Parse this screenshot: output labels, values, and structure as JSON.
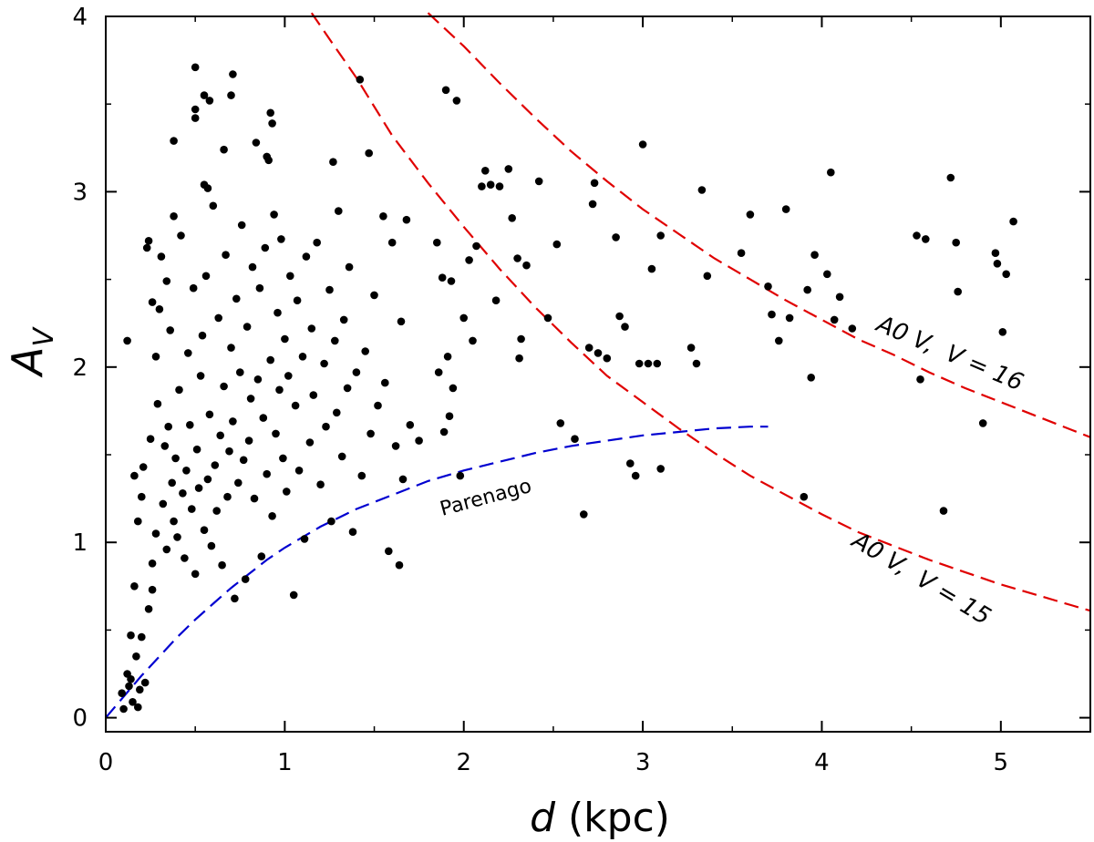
{
  "chart_data": {
    "type": "scatter",
    "title": "",
    "xlabel": {
      "symbol": "d",
      "unit": "(kpc)"
    },
    "ylabel": {
      "symbol": "A",
      "subscript": "V"
    },
    "xlim": [
      0,
      5.5
    ],
    "ylim": [
      -0.08,
      4
    ],
    "x_ticks": [
      0,
      1,
      2,
      3,
      4,
      5
    ],
    "y_ticks": [
      0,
      1,
      2,
      3,
      4
    ],
    "x_tick_labels": [
      "0",
      "1",
      "2",
      "3",
      "4",
      "5"
    ],
    "y_tick_labels": [
      "0",
      "1",
      "2",
      "3",
      "4"
    ],
    "grid": false,
    "colors": {
      "points": "#000000",
      "red_curve": "#e00000",
      "blue_curve": "#0000d0",
      "axes": "#000000"
    },
    "curves": [
      {
        "name": "A0 V, V = 15",
        "label": "A0 V,  V = 15",
        "color": "#e00000",
        "style": "dashed",
        "x_range": [
          1.15,
          5.5
        ]
      },
      {
        "name": "A0 V, V = 16",
        "label": "A0 V,  V = 16",
        "color": "#e00000",
        "style": "dashed",
        "x_range": [
          1.8,
          5.5
        ]
      },
      {
        "name": "Parenago",
        "label": "Parenago",
        "color": "#0000d0",
        "style": "dashed",
        "x_range": [
          0,
          3.7
        ]
      }
    ],
    "points": [
      [
        0.12,
        2.15
      ],
      [
        0.16,
        1.38
      ],
      [
        0.18,
        1.12
      ],
      [
        0.2,
        1.26
      ],
      [
        0.21,
        1.43
      ],
      [
        0.23,
        2.68
      ],
      [
        0.24,
        2.72
      ],
      [
        0.25,
        1.59
      ],
      [
        0.26,
        2.37
      ],
      [
        0.26,
        0.88
      ],
      [
        0.28,
        2.06
      ],
      [
        0.28,
        1.05
      ],
      [
        0.29,
        1.79
      ],
      [
        0.3,
        2.33
      ],
      [
        0.31,
        2.63
      ],
      [
        0.32,
        1.22
      ],
      [
        0.33,
        1.55
      ],
      [
        0.34,
        2.49
      ],
      [
        0.34,
        0.96
      ],
      [
        0.35,
        1.66
      ],
      [
        0.36,
        2.21
      ],
      [
        0.37,
        1.34
      ],
      [
        0.38,
        2.86
      ],
      [
        0.38,
        1.12
      ],
      [
        0.39,
        1.48
      ],
      [
        0.4,
        1.03
      ],
      [
        0.41,
        1.87
      ],
      [
        0.42,
        2.75
      ],
      [
        0.43,
        1.28
      ],
      [
        0.44,
        0.91
      ],
      [
        0.45,
        1.41
      ],
      [
        0.46,
        2.08
      ],
      [
        0.47,
        1.67
      ],
      [
        0.48,
        1.19
      ],
      [
        0.49,
        2.45
      ],
      [
        0.5,
        0.82
      ],
      [
        0.51,
        1.53
      ],
      [
        0.52,
        1.31
      ],
      [
        0.53,
        1.95
      ],
      [
        0.54,
        2.18
      ],
      [
        0.55,
        1.07
      ],
      [
        0.56,
        2.52
      ],
      [
        0.57,
        1.36
      ],
      [
        0.58,
        1.73
      ],
      [
        0.59,
        0.98
      ],
      [
        0.6,
        2.92
      ],
      [
        0.61,
        1.44
      ],
      [
        0.62,
        1.18
      ],
      [
        0.63,
        2.28
      ],
      [
        0.64,
        1.61
      ],
      [
        0.65,
        0.87
      ],
      [
        0.66,
        1.89
      ],
      [
        0.67,
        2.64
      ],
      [
        0.68,
        1.26
      ],
      [
        0.69,
        1.52
      ],
      [
        0.7,
        2.11
      ],
      [
        0.71,
        1.69
      ],
      [
        0.72,
        0.68
      ],
      [
        0.73,
        2.39
      ],
      [
        0.74,
        1.34
      ],
      [
        0.75,
        1.97
      ],
      [
        0.76,
        2.81
      ],
      [
        0.77,
        1.47
      ],
      [
        0.78,
        0.79
      ],
      [
        0.79,
        2.23
      ],
      [
        0.8,
        1.58
      ],
      [
        0.81,
        1.82
      ],
      [
        0.82,
        2.57
      ],
      [
        0.83,
        1.25
      ],
      [
        0.84,
        3.28
      ],
      [
        0.85,
        1.93
      ],
      [
        0.86,
        2.45
      ],
      [
        0.87,
        0.92
      ],
      [
        0.88,
        1.71
      ],
      [
        0.89,
        2.68
      ],
      [
        0.9,
        1.39
      ],
      [
        0.91,
        3.18
      ],
      [
        0.92,
        2.04
      ],
      [
        0.93,
        1.15
      ],
      [
        0.94,
        2.87
      ],
      [
        0.95,
        1.62
      ],
      [
        0.96,
        2.31
      ],
      [
        0.97,
        1.87
      ],
      [
        0.98,
        2.73
      ],
      [
        0.99,
        1.48
      ],
      [
        1.0,
        2.16
      ],
      [
        1.01,
        1.29
      ],
      [
        1.02,
        1.95
      ],
      [
        1.03,
        2.52
      ],
      [
        1.05,
        0.7
      ],
      [
        1.06,
        1.78
      ],
      [
        1.07,
        2.38
      ],
      [
        1.08,
        1.41
      ],
      [
        1.1,
        2.06
      ],
      [
        1.11,
        1.02
      ],
      [
        1.12,
        2.63
      ],
      [
        1.14,
        1.57
      ],
      [
        1.15,
        2.22
      ],
      [
        1.16,
        1.84
      ],
      [
        1.18,
        2.71
      ],
      [
        1.2,
        1.33
      ],
      [
        1.22,
        2.02
      ],
      [
        1.23,
        1.66
      ],
      [
        1.25,
        2.44
      ],
      [
        1.26,
        1.12
      ],
      [
        1.28,
        2.15
      ],
      [
        1.29,
        1.74
      ],
      [
        1.3,
        2.89
      ],
      [
        1.32,
        1.49
      ],
      [
        1.33,
        2.27
      ],
      [
        1.35,
        1.88
      ],
      [
        1.36,
        2.57
      ],
      [
        1.38,
        1.06
      ],
      [
        1.4,
        1.97
      ],
      [
        1.42,
        3.64
      ],
      [
        1.43,
        1.38
      ],
      [
        1.45,
        2.09
      ],
      [
        1.47,
        3.22
      ],
      [
        1.48,
        1.62
      ],
      [
        1.5,
        2.41
      ],
      [
        1.52,
        1.78
      ],
      [
        1.55,
        2.86
      ],
      [
        1.56,
        1.91
      ],
      [
        1.58,
        0.95
      ],
      [
        1.6,
        2.71
      ],
      [
        1.62,
        1.55
      ],
      [
        1.64,
        0.87
      ],
      [
        1.65,
        2.26
      ],
      [
        1.66,
        1.36
      ],
      [
        1.68,
        2.84
      ],
      [
        1.7,
        1.67
      ],
      [
        1.75,
        1.58
      ],
      [
        1.85,
        2.71
      ],
      [
        1.86,
        1.97
      ],
      [
        1.88,
        2.51
      ],
      [
        1.89,
        1.63
      ],
      [
        1.9,
        3.58
      ],
      [
        1.91,
        2.06
      ],
      [
        1.92,
        1.72
      ],
      [
        1.93,
        2.49
      ],
      [
        1.94,
        1.88
      ],
      [
        1.96,
        3.52
      ],
      [
        1.98,
        1.38
      ],
      [
        2.0,
        2.28
      ],
      [
        2.03,
        2.61
      ],
      [
        2.05,
        2.15
      ],
      [
        2.07,
        2.69
      ],
      [
        2.1,
        3.03
      ],
      [
        2.12,
        3.12
      ],
      [
        2.15,
        3.04
      ],
      [
        2.18,
        2.38
      ],
      [
        2.2,
        3.03
      ],
      [
        2.25,
        3.13
      ],
      [
        2.27,
        2.85
      ],
      [
        2.3,
        2.62
      ],
      [
        2.31,
        2.05
      ],
      [
        2.32,
        2.16
      ],
      [
        2.35,
        2.58
      ],
      [
        2.42,
        3.06
      ],
      [
        2.47,
        2.28
      ],
      [
        2.52,
        2.7
      ],
      [
        2.54,
        1.68
      ],
      [
        2.62,
        1.59
      ],
      [
        2.67,
        1.16
      ],
      [
        2.7,
        2.11
      ],
      [
        2.72,
        2.93
      ],
      [
        2.73,
        3.05
      ],
      [
        2.75,
        2.08
      ],
      [
        2.8,
        2.05
      ],
      [
        2.85,
        2.74
      ],
      [
        2.87,
        2.29
      ],
      [
        2.9,
        2.23
      ],
      [
        2.93,
        1.45
      ],
      [
        2.96,
        1.38
      ],
      [
        2.98,
        2.02
      ],
      [
        3.0,
        3.27
      ],
      [
        3.03,
        2.02
      ],
      [
        3.05,
        2.56
      ],
      [
        3.08,
        2.02
      ],
      [
        3.1,
        2.75
      ],
      [
        3.1,
        1.42
      ],
      [
        3.27,
        2.11
      ],
      [
        3.3,
        2.02
      ],
      [
        3.33,
        3.01
      ],
      [
        3.36,
        2.52
      ],
      [
        3.55,
        2.65
      ],
      [
        3.6,
        2.87
      ],
      [
        3.7,
        2.46
      ],
      [
        3.72,
        2.3
      ],
      [
        3.76,
        2.15
      ],
      [
        3.8,
        2.9
      ],
      [
        3.82,
        2.28
      ],
      [
        3.9,
        1.26
      ],
      [
        3.92,
        2.44
      ],
      [
        3.94,
        1.94
      ],
      [
        3.96,
        2.64
      ],
      [
        4.03,
        2.53
      ],
      [
        4.05,
        3.11
      ],
      [
        4.07,
        2.27
      ],
      [
        4.1,
        2.4
      ],
      [
        4.17,
        2.22
      ],
      [
        4.53,
        2.75
      ],
      [
        4.55,
        1.93
      ],
      [
        4.58,
        2.73
      ],
      [
        4.68,
        1.18
      ],
      [
        4.72,
        3.08
      ],
      [
        4.75,
        2.71
      ],
      [
        4.76,
        2.43
      ],
      [
        4.9,
        1.68
      ],
      [
        4.97,
        2.65
      ],
      [
        4.98,
        2.59
      ],
      [
        5.01,
        2.2
      ],
      [
        5.03,
        2.53
      ],
      [
        5.07,
        2.83
      ],
      [
        0.09,
        0.14
      ],
      [
        0.1,
        0.05
      ],
      [
        0.12,
        0.25
      ],
      [
        0.13,
        0.18
      ],
      [
        0.14,
        0.22
      ],
      [
        0.15,
        0.09
      ],
      [
        0.17,
        0.35
      ],
      [
        0.18,
        0.06
      ],
      [
        0.19,
        0.16
      ],
      [
        0.2,
        0.46
      ],
      [
        0.22,
        0.2
      ],
      [
        0.14,
        0.47
      ],
      [
        0.24,
        0.62
      ],
      [
        0.26,
        0.73
      ],
      [
        0.16,
        0.75
      ],
      [
        0.5,
        3.71
      ],
      [
        0.5,
        3.42
      ],
      [
        0.55,
        3.55
      ],
      [
        0.58,
        3.52
      ],
      [
        0.5,
        3.47
      ],
      [
        0.71,
        3.67
      ],
      [
        0.7,
        3.55
      ],
      [
        0.66,
        3.24
      ],
      [
        0.38,
        3.29
      ],
      [
        0.55,
        3.04
      ],
      [
        0.57,
        3.02
      ],
      [
        0.9,
        3.2
      ],
      [
        0.92,
        3.45
      ],
      [
        0.93,
        3.39
      ],
      [
        1.27,
        3.17
      ]
    ],
    "curve_points": {
      "v15": [
        [
          1.15,
          4.02
        ],
        [
          1.25,
          3.87
        ],
        [
          1.4,
          3.65
        ],
        [
          1.6,
          3.32
        ],
        [
          1.8,
          3.05
        ],
        [
          2.0,
          2.8
        ],
        [
          2.2,
          2.56
        ],
        [
          2.4,
          2.34
        ],
        [
          2.6,
          2.14
        ],
        [
          2.8,
          1.95
        ],
        [
          3.0,
          1.8
        ],
        [
          3.2,
          1.65
        ],
        [
          3.4,
          1.51
        ],
        [
          3.6,
          1.38
        ],
        [
          3.8,
          1.27
        ],
        [
          4.0,
          1.16
        ],
        [
          4.2,
          1.06
        ],
        [
          4.4,
          0.98
        ],
        [
          4.6,
          0.9
        ],
        [
          4.8,
          0.83
        ],
        [
          5.0,
          0.76
        ],
        [
          5.2,
          0.7
        ],
        [
          5.4,
          0.64
        ],
        [
          5.5,
          0.61
        ]
      ],
      "v16": [
        [
          1.8,
          4.02
        ],
        [
          2.0,
          3.83
        ],
        [
          2.2,
          3.62
        ],
        [
          2.4,
          3.42
        ],
        [
          2.6,
          3.23
        ],
        [
          2.8,
          3.06
        ],
        [
          3.0,
          2.9
        ],
        [
          3.2,
          2.76
        ],
        [
          3.4,
          2.62
        ],
        [
          3.6,
          2.5
        ],
        [
          3.8,
          2.38
        ],
        [
          4.0,
          2.27
        ],
        [
          4.2,
          2.16
        ],
        [
          4.4,
          2.07
        ],
        [
          4.6,
          1.97
        ],
        [
          4.8,
          1.88
        ],
        [
          5.0,
          1.8
        ],
        [
          5.2,
          1.72
        ],
        [
          5.4,
          1.64
        ],
        [
          5.5,
          1.6
        ]
      ],
      "parenago": [
        [
          0.0,
          0.0
        ],
        [
          0.1,
          0.12
        ],
        [
          0.2,
          0.24
        ],
        [
          0.3,
          0.35
        ],
        [
          0.4,
          0.46
        ],
        [
          0.5,
          0.56
        ],
        [
          0.6,
          0.65
        ],
        [
          0.7,
          0.74
        ],
        [
          0.8,
          0.82
        ],
        [
          0.9,
          0.9
        ],
        [
          1.0,
          0.97
        ],
        [
          1.2,
          1.09
        ],
        [
          1.4,
          1.19
        ],
        [
          1.6,
          1.27
        ],
        [
          1.8,
          1.35
        ],
        [
          2.0,
          1.41
        ],
        [
          2.2,
          1.46
        ],
        [
          2.4,
          1.51
        ],
        [
          2.6,
          1.55
        ],
        [
          2.8,
          1.58
        ],
        [
          3.0,
          1.61
        ],
        [
          3.2,
          1.63
        ],
        [
          3.4,
          1.65
        ],
        [
          3.6,
          1.66
        ],
        [
          3.7,
          1.66
        ]
      ]
    }
  }
}
